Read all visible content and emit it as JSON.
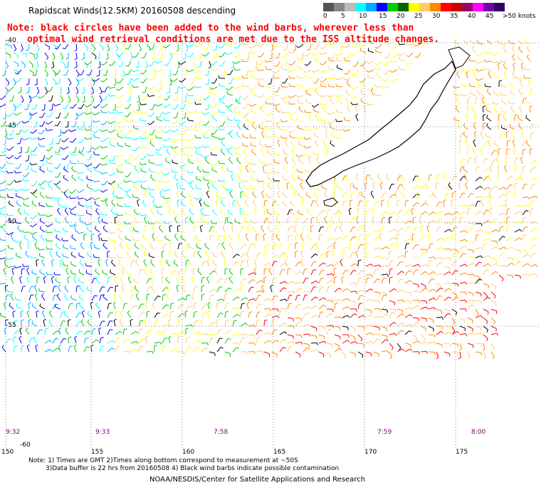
{
  "title": "Rapidscat Winds(12.5KM) 20160508 descending",
  "note": {
    "line1": "Note: black circles have been added to the wind barbs, wherever less than",
    "line2": "optimal wind retrieval conditions are met due to the ISS altitude changes."
  },
  "legend": {
    "colors": [
      "#555555",
      "#888888",
      "#bbbbbb",
      "#00ffff",
      "#00aaff",
      "#0000ff",
      "#00cc00",
      "#006600",
      "#ffff00",
      "#ffcc66",
      "#ff8800",
      "#ff0000",
      "#cc0000",
      "#990066",
      "#ff00ff",
      "#7700aa",
      "#330066"
    ],
    "labels": [
      "0",
      "5",
      "10",
      "15",
      "20",
      "25",
      "30",
      "35",
      "40",
      "45",
      ">50 knots"
    ]
  },
  "map": {
    "lat_labels": [
      "-40",
      "-45",
      "-50",
      "-55",
      "-60"
    ],
    "lon_labels": [
      "150",
      "155",
      "160",
      "165",
      "170",
      "175"
    ],
    "time_labels": [
      "9:32",
      "9:33",
      "7:58",
      "7:59",
      "8:00"
    ]
  },
  "footer": {
    "line1": "Note: 1) Times are GMT 2)Times along bottom correspond to measurement at ~50S",
    "line2": "3)Data buffer is 22 hrs from 20160508 4) Black wind barbs indicate possible contamination",
    "credit": "NOAA/NESDIS/Center for Satellite Applications and Research"
  }
}
